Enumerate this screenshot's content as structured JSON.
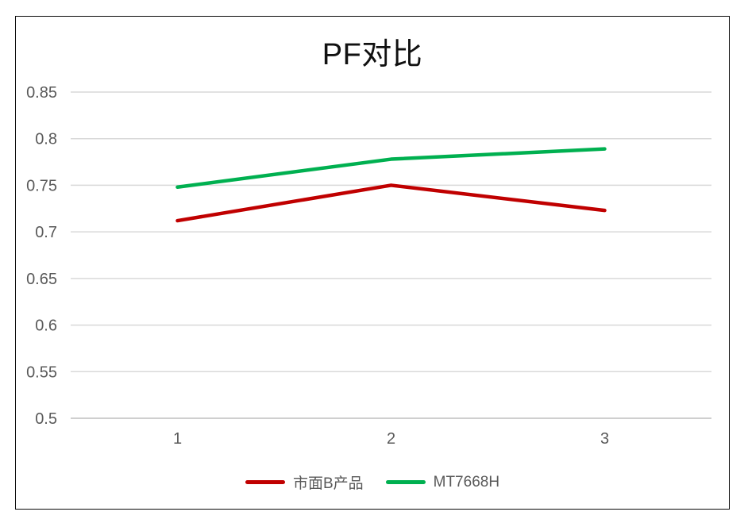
{
  "window": {
    "background": "#ffffff",
    "frame_border_color": "#0a0a0a"
  },
  "chart_data": {
    "type": "line",
    "title": "PF对比",
    "categories": [
      "1",
      "2",
      "3"
    ],
    "series": [
      {
        "name": "市面B产品",
        "color": "#c00000",
        "values": [
          0.712,
          0.75,
          0.723
        ]
      },
      {
        "name": "MT7668H",
        "color": "#00b050",
        "values": [
          0.748,
          0.778,
          0.789
        ]
      }
    ],
    "xlabel": "",
    "ylabel": "",
    "ylim": [
      0.5,
      0.85
    ],
    "ytick_step": 0.05,
    "ytick_labels": [
      "0.85",
      "0.8",
      "0.75",
      "0.7",
      "0.65",
      "0.6",
      "0.55",
      "0.5"
    ],
    "grid": true,
    "gridline_color": "#d9d9d9",
    "axis_line_color": "#bfbfbf",
    "tick_label_color": "#595959",
    "legend_position": "bottom"
  }
}
